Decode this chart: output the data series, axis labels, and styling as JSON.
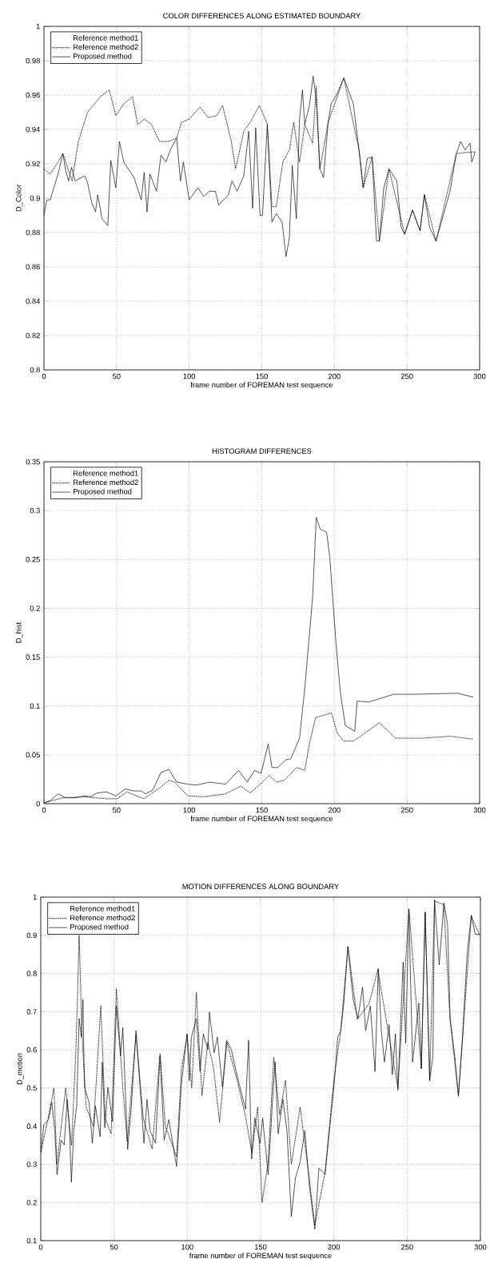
{
  "chart_data": [
    {
      "type": "line",
      "title": "COLOR DIFFERENCES ALONG ESTIMATED BOUNDARY",
      "xlabel": "frame number of FOREMAN test sequence",
      "ylabel": "D_Color",
      "xlim": [
        0,
        300
      ],
      "xticks": [
        0,
        50,
        100,
        150,
        200,
        250,
        300
      ],
      "ylim": [
        0.8,
        1
      ],
      "yticks": [
        0.8,
        0.82,
        0.84,
        0.86,
        0.88,
        0.9,
        0.92,
        0.94,
        0.96,
        0.98,
        1
      ],
      "grid": true,
      "legend": "top left",
      "series": [
        {
          "name": "Reference method1"
        },
        {
          "name": "Reference method2",
          "color": "#000000",
          "line_style": "dotted",
          "x": [
            0,
            4.3,
            9.7,
            13,
            19.4,
            23.7,
            30,
            38.7,
            45,
            49.5,
            55,
            61,
            64.5,
            69,
            74,
            79.6,
            86,
            91.4,
            94.6,
            100,
            107.5,
            113,
            119,
            123,
            129,
            132,
            137.6,
            142,
            148.4,
            153.8,
            157,
            160,
            164.5,
            169,
            172,
            176,
            179.6,
            185,
            187.5,
            190,
            195.7,
            206.5,
            217,
            219.8,
            226,
            231,
            237.6,
            248.4,
            253.8,
            259,
            262,
            270,
            284,
            297
          ],
          "values": [
            0.917,
            0.914,
            0.921,
            0.926,
            0.91,
            0.933,
            0.95,
            0.959,
            0.963,
            0.948,
            0.955,
            0.959,
            0.943,
            0.946,
            0.943,
            0.933,
            0.933,
            0.935,
            0.944,
            0.946,
            0.953,
            0.947,
            0.948,
            0.954,
            0.933,
            0.917,
            0.939,
            0.944,
            0.954,
            0.943,
            0.895,
            0.895,
            0.921,
            0.928,
            0.944,
            0.921,
            0.943,
            0.932,
            0.965,
            0.917,
            0.944,
            0.97,
            0.928,
            0.906,
            0.924,
            0.875,
            0.917,
            0.879,
            0.893,
            0.881,
            0.902,
            0.875,
            0.926,
            0.927
          ]
        },
        {
          "name": "Proposed method",
          "color": "#000000",
          "line_style": "solid",
          "x": [
            0,
            2,
            4.3,
            9.7,
            13,
            15,
            17,
            19,
            21.5,
            28,
            30,
            33,
            35.5,
            37,
            40,
            44,
            46,
            49.5,
            52,
            55,
            62,
            67,
            69,
            71,
            73,
            77.5,
            80.6,
            84,
            87,
            91.4,
            94,
            96,
            100,
            106,
            110,
            114,
            118,
            120.4,
            127,
            129.5,
            133,
            137.6,
            141,
            143.7,
            145.8,
            148.8,
            150.5,
            153.8,
            157,
            160,
            164,
            166.7,
            169,
            171,
            173.8,
            176,
            178,
            179.6,
            182.8,
            185.4,
            187.5,
            190,
            192.5,
            195.7,
            197.8,
            202,
            206.5,
            213,
            217,
            219.8,
            222.6,
            226,
            229,
            231,
            234,
            237.6,
            243,
            246,
            248.4,
            253.8,
            259,
            262,
            265.6,
            270,
            275,
            279.6,
            284,
            287,
            290,
            293.5,
            294.6,
            297
          ],
          "values": [
            0.89,
            0.899,
            0.899,
            0.914,
            0.926,
            0.916,
            0.91,
            0.918,
            0.91,
            0.913,
            0.909,
            0.897,
            0.892,
            0.902,
            0.888,
            0.884,
            0.922,
            0.906,
            0.933,
            0.921,
            0.912,
            0.899,
            0.915,
            0.892,
            0.914,
            0.904,
            0.925,
            0.921,
            0.928,
            0.935,
            0.91,
            0.921,
            0.899,
            0.906,
            0.901,
            0.904,
            0.904,
            0.896,
            0.902,
            0.91,
            0.904,
            0.913,
            0.939,
            0.894,
            0.941,
            0.89,
            0.89,
            0.943,
            0.886,
            0.891,
            0.886,
            0.866,
            0.877,
            0.919,
            0.888,
            0.946,
            0.963,
            0.943,
            0.954,
            0.971,
            0.957,
            0.917,
            0.912,
            0.944,
            0.955,
            0.961,
            0.97,
            0.955,
            0.928,
            0.906,
            0.923,
            0.924,
            0.875,
            0.875,
            0.906,
            0.917,
            0.91,
            0.883,
            0.879,
            0.893,
            0.881,
            0.902,
            0.883,
            0.875,
            0.89,
            0.904,
            0.926,
            0.933,
            0.928,
            0.932,
            0.921,
            0.927
          ]
        }
      ]
    },
    {
      "type": "line",
      "title": "HISTOGRAM DIFFERENCES",
      "xlabel": "frame number of FOREMAN test sequence",
      "ylabel": "D_hist",
      "xlim": [
        0,
        300
      ],
      "xticks": [
        0,
        50,
        100,
        150,
        200,
        250,
        300
      ],
      "ylim": [
        0,
        0.35
      ],
      "yticks": [
        0,
        0.05,
        0.1,
        0.15,
        0.2,
        0.25,
        0.3,
        0.35
      ],
      "grid": true,
      "legend": "top left",
      "series": [
        {
          "name": "Reference method1"
        },
        {
          "name": "Reference method2",
          "color": "#000000",
          "line_style": "dotted",
          "x": [
            0,
            13,
            28,
            43,
            50.5,
            57,
            68.8,
            79.6,
            86,
            90,
            99,
            110,
            125,
            135.5,
            142,
            150.5,
            155,
            160,
            165.6,
            174,
            179.6,
            182.8,
            187,
            198,
            202,
            206.5,
            213,
            219,
            231,
            236.6,
            242,
            249.5,
            260,
            279.6,
            295.7
          ],
          "values": [
            0.001,
            0.006,
            0.007,
            0.005,
            0.005,
            0.012,
            0.005,
            0.016,
            0.024,
            0.022,
            0.008,
            0.007,
            0.01,
            0.018,
            0.011,
            0.022,
            0.029,
            0.022,
            0.024,
            0.037,
            0.034,
            0.061,
            0.088,
            0.093,
            0.072,
            0.064,
            0.064,
            0.07,
            0.083,
            0.075,
            0.067,
            0.067,
            0.067,
            0.069,
            0.066
          ]
        },
        {
          "name": "Proposed method",
          "color": "#000000",
          "line_style": "solid",
          "x": [
            0,
            4.3,
            9.7,
            15,
            21.5,
            28,
            32,
            36.6,
            43,
            49.5,
            56,
            62,
            67,
            70,
            75,
            80.6,
            86,
            91.4,
            99,
            105,
            114,
            125,
            134,
            140,
            145,
            149.5,
            154.4,
            157,
            161,
            166.7,
            170,
            176,
            179.6,
            185,
            187.5,
            190.3,
            194.6,
            196.8,
            201,
            204,
            207.5,
            214,
            215.7,
            223.7,
            230,
            241,
            256,
            285,
            295.7
          ],
          "values": [
            0.001,
            0.003,
            0.01,
            0.006,
            0.006,
            0.008,
            0.007,
            0.011,
            0.012,
            0.008,
            0.015,
            0.013,
            0.013,
            0.01,
            0.014,
            0.032,
            0.035,
            0.022,
            0.02,
            0.019,
            0.022,
            0.02,
            0.034,
            0.022,
            0.034,
            0.031,
            0.061,
            0.037,
            0.037,
            0.045,
            0.046,
            0.067,
            0.118,
            0.211,
            0.293,
            0.281,
            0.278,
            0.253,
            0.166,
            0.115,
            0.08,
            0.074,
            0.105,
            0.104,
            0.107,
            0.112,
            0.112,
            0.113,
            0.109
          ]
        }
      ]
    },
    {
      "type": "line",
      "title": "MOTION DIFFERENCES ALONG BOUNDARY",
      "xlabel": "frame number of FOREMAN test sequence",
      "ylabel": "D_motion",
      "xlim": [
        0,
        300
      ],
      "xticks": [
        0,
        50,
        100,
        150,
        200,
        250,
        300
      ],
      "ylim": [
        0.1,
        1
      ],
      "yticks": [
        0.1,
        0.2,
        0.3,
        0.4,
        0.5,
        0.6,
        0.7,
        0.8,
        0.9,
        1
      ],
      "grid": true,
      "legend": "top left",
      "series": [
        {
          "name": "Reference method1"
        },
        {
          "name": "Reference method2",
          "color": "#000000",
          "line_style": "dotted",
          "x": [
            0,
            5,
            9,
            11,
            17,
            21,
            24,
            26.2,
            28,
            31,
            36,
            41,
            44,
            48,
            51.6,
            56,
            59,
            65,
            70,
            76,
            81.4,
            85,
            92.7,
            96,
            100,
            103,
            106.2,
            110,
            114,
            118,
            122,
            127,
            134,
            140,
            144,
            148,
            151,
            155,
            159,
            163,
            167,
            171,
            177,
            183,
            187,
            194,
            200,
            204.7,
            209.6,
            216,
            224,
            230,
            237,
            243.7,
            251.2,
            259.7,
            262.3,
            265.4,
            268.7,
            275,
            279.3,
            285,
            293.8,
            299.6
          ],
          "values": [
            0.33,
            0.42,
            0.5,
            0.3,
            0.5,
            0.35,
            0.6,
            0.9,
            0.65,
            0.45,
            0.4,
            0.715,
            0.42,
            0.38,
            0.76,
            0.5,
            0.36,
            0.64,
            0.42,
            0.34,
            0.59,
            0.4,
            0.32,
            0.55,
            0.64,
            0.5,
            0.75,
            0.48,
            0.62,
            0.55,
            0.41,
            0.62,
            0.52,
            0.42,
            0.33,
            0.45,
            0.2,
            0.3,
            0.58,
            0.43,
            0.52,
            0.3,
            0.45,
            0.27,
            0.14,
            0.28,
            0.52,
            0.65,
            0.87,
            0.68,
            0.72,
            0.81,
            0.65,
            0.5,
            0.97,
            0.55,
            0.96,
            0.52,
            0.99,
            0.98,
            0.68,
            0.48,
            0.95,
            0.9
          ]
        },
        {
          "name": "Proposed method",
          "color": "#000000",
          "line_style": "solid",
          "x": [
            0,
            2.1,
            5.3,
            7.5,
            9.6,
            11.1,
            13.9,
            16,
            18.1,
            19.6,
            20.9,
            22.4,
            24.5,
            26.2,
            27.7,
            28.8,
            29.8,
            33,
            35.2,
            37.3,
            40.5,
            42,
            43.7,
            45.8,
            49,
            51.6,
            54.4,
            56,
            59.3,
            61.8,
            65,
            68.2,
            70.4,
            72.5,
            74.6,
            78.3,
            81.4,
            84.2,
            87.4,
            92.7,
            96,
            99.8,
            101.3,
            102.8,
            106.2,
            108.7,
            110.9,
            114,
            115.1,
            118.3,
            120.5,
            124,
            126.8,
            130,
            134.3,
            139.7,
            141.8,
            143.9,
            146,
            149.7,
            151.4,
            155.2,
            158.2,
            159.9,
            162,
            165.2,
            168,
            171,
            173.8,
            177,
            180.2,
            183.4,
            187,
            189.8,
            194,
            198.3,
            200.4,
            202.6,
            204.7,
            206.8,
            209.6,
            213.2,
            216.4,
            219.6,
            221.7,
            224.9,
            228.1,
            230.3,
            232.4,
            234.5,
            237.7,
            239.9,
            242,
            243.7,
            247.3,
            249,
            251.2,
            253.7,
            258,
            259.7,
            262.3,
            265.4,
            267.6,
            268.7,
            271.9,
            275.1,
            277.6,
            279.3,
            282.5,
            285,
            287.8,
            291,
            293.8,
            296.4,
            299.6
          ],
          "values": [
            0.331,
            0.404,
            0.417,
            0.462,
            0.388,
            0.273,
            0.363,
            0.351,
            0.47,
            0.388,
            0.253,
            0.384,
            0.453,
            0.682,
            0.633,
            0.732,
            0.502,
            0.462,
            0.355,
            0.453,
            0.372,
            0.568,
            0.396,
            0.502,
            0.412,
            0.715,
            0.584,
            0.658,
            0.339,
            0.453,
            0.65,
            0.478,
            0.355,
            0.47,
            0.388,
            0.355,
            0.584,
            0.363,
            0.417,
            0.294,
            0.511,
            0.642,
            0.519,
            0.633,
            0.682,
            0.543,
            0.642,
            0.601,
            0.699,
            0.592,
            0.633,
            0.502,
            0.625,
            0.601,
            0.527,
            0.445,
            0.625,
            0.314,
            0.421,
            0.355,
            0.421,
            0.273,
            0.47,
            0.568,
            0.38,
            0.47,
            0.388,
            0.163,
            0.265,
            0.306,
            0.388,
            0.241,
            0.13,
            0.29,
            0.273,
            0.437,
            0.519,
            0.633,
            0.65,
            0.723,
            0.871,
            0.732,
            0.682,
            0.764,
            0.65,
            0.715,
            0.543,
            0.813,
            0.65,
            0.568,
            0.666,
            0.535,
            0.642,
            0.494,
            0.83,
            0.617,
            0.969,
            0.568,
            0.723,
            0.551,
            0.961,
            0.519,
            0.584,
            0.993,
            0.822,
            0.985,
            0.928,
            0.682,
            0.584,
            0.478,
            0.633,
            0.854,
            0.953,
            0.903,
            0.903
          ]
        }
      ]
    }
  ]
}
